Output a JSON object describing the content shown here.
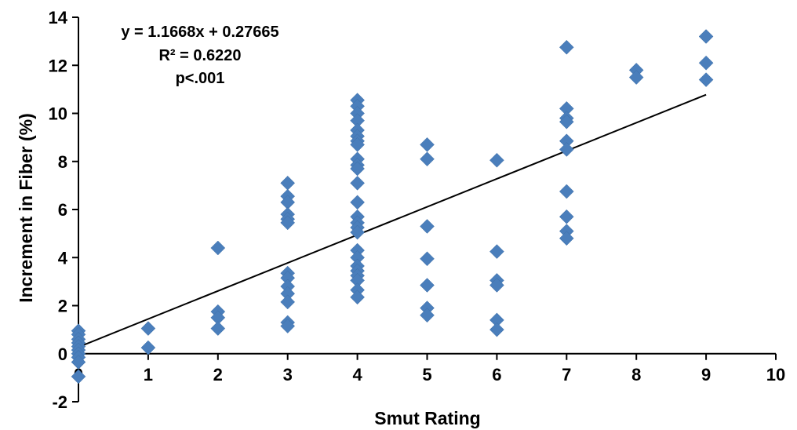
{
  "chart_data": {
    "type": "scatter",
    "xlabel": "Smut Rating",
    "ylabel": "Increment in Fiber (%)",
    "xlim": [
      0,
      10
    ],
    "ylim": [
      -2,
      14
    ],
    "x_ticks": [
      "0",
      "1",
      "2",
      "3",
      "4",
      "5",
      "6",
      "7",
      "8",
      "9",
      "10"
    ],
    "y_ticks": [
      "-2",
      "0",
      "2",
      "4",
      "6",
      "8",
      "10",
      "12",
      "14"
    ],
    "grid": false,
    "legend": "none",
    "annotations": [
      "y = 1.1668x + 0.27665",
      "R² = 0.6220",
      "p<.001"
    ],
    "trendline": {
      "slope": 1.1668,
      "intercept": 0.27665,
      "x_range": [
        0,
        9
      ]
    },
    "colors": {
      "points": "#4a7ebb",
      "trendline": "#000000",
      "axes": "#000000"
    },
    "points": [
      {
        "x": 0,
        "y": 0.95
      },
      {
        "x": 0,
        "y": 0.8
      },
      {
        "x": 0,
        "y": 0.6
      },
      {
        "x": 0,
        "y": 0.45
      },
      {
        "x": 0,
        "y": 0.3
      },
      {
        "x": 0,
        "y": 0.15
      },
      {
        "x": 0,
        "y": 0.0
      },
      {
        "x": 0,
        "y": -0.15
      },
      {
        "x": 0,
        "y": -0.35
      },
      {
        "x": 0,
        "y": -0.95
      },
      {
        "x": 1,
        "y": 1.05
      },
      {
        "x": 1,
        "y": 0.25
      },
      {
        "x": 2,
        "y": 4.4
      },
      {
        "x": 2,
        "y": 1.75
      },
      {
        "x": 2,
        "y": 1.5
      },
      {
        "x": 2,
        "y": 1.05
      },
      {
        "x": 3,
        "y": 7.1
      },
      {
        "x": 3,
        "y": 6.55
      },
      {
        "x": 3,
        "y": 6.3
      },
      {
        "x": 3,
        "y": 5.8
      },
      {
        "x": 3,
        "y": 5.6
      },
      {
        "x": 3,
        "y": 5.45
      },
      {
        "x": 3,
        "y": 3.35
      },
      {
        "x": 3,
        "y": 3.15
      },
      {
        "x": 3,
        "y": 2.8
      },
      {
        "x": 3,
        "y": 2.5
      },
      {
        "x": 3,
        "y": 2.15
      },
      {
        "x": 3,
        "y": 1.3
      },
      {
        "x": 3,
        "y": 1.15
      },
      {
        "x": 4,
        "y": 10.55
      },
      {
        "x": 4,
        "y": 10.3
      },
      {
        "x": 4,
        "y": 10.0
      },
      {
        "x": 4,
        "y": 9.7
      },
      {
        "x": 4,
        "y": 9.3
      },
      {
        "x": 4,
        "y": 9.05
      },
      {
        "x": 4,
        "y": 8.85
      },
      {
        "x": 4,
        "y": 8.7
      },
      {
        "x": 4,
        "y": 8.1
      },
      {
        "x": 4,
        "y": 7.85
      },
      {
        "x": 4,
        "y": 7.7
      },
      {
        "x": 4,
        "y": 7.1
      },
      {
        "x": 4,
        "y": 6.3
      },
      {
        "x": 4,
        "y": 5.7
      },
      {
        "x": 4,
        "y": 5.45
      },
      {
        "x": 4,
        "y": 5.25
      },
      {
        "x": 4,
        "y": 5.05
      },
      {
        "x": 4,
        "y": 4.3
      },
      {
        "x": 4,
        "y": 4.0
      },
      {
        "x": 4,
        "y": 3.65
      },
      {
        "x": 4,
        "y": 3.45
      },
      {
        "x": 4,
        "y": 3.25
      },
      {
        "x": 4,
        "y": 3.05
      },
      {
        "x": 4,
        "y": 2.65
      },
      {
        "x": 4,
        "y": 2.35
      },
      {
        "x": 5,
        "y": 8.7
      },
      {
        "x": 5,
        "y": 8.1
      },
      {
        "x": 5,
        "y": 5.3
      },
      {
        "x": 5,
        "y": 3.95
      },
      {
        "x": 5,
        "y": 2.85
      },
      {
        "x": 5,
        "y": 1.9
      },
      {
        "x": 5,
        "y": 1.6
      },
      {
        "x": 6,
        "y": 8.05
      },
      {
        "x": 6,
        "y": 4.25
      },
      {
        "x": 6,
        "y": 3.05
      },
      {
        "x": 6,
        "y": 2.85
      },
      {
        "x": 6,
        "y": 1.4
      },
      {
        "x": 6,
        "y": 1.0
      },
      {
        "x": 7,
        "y": 12.75
      },
      {
        "x": 7,
        "y": 10.2
      },
      {
        "x": 7,
        "y": 9.8
      },
      {
        "x": 7,
        "y": 9.65
      },
      {
        "x": 7,
        "y": 8.85
      },
      {
        "x": 7,
        "y": 8.5
      },
      {
        "x": 7,
        "y": 6.75
      },
      {
        "x": 7,
        "y": 5.7
      },
      {
        "x": 7,
        "y": 5.1
      },
      {
        "x": 7,
        "y": 4.8
      },
      {
        "x": 8,
        "y": 11.8
      },
      {
        "x": 8,
        "y": 11.5
      },
      {
        "x": 9,
        "y": 13.2
      },
      {
        "x": 9,
        "y": 12.1
      },
      {
        "x": 9,
        "y": 11.4
      }
    ]
  }
}
